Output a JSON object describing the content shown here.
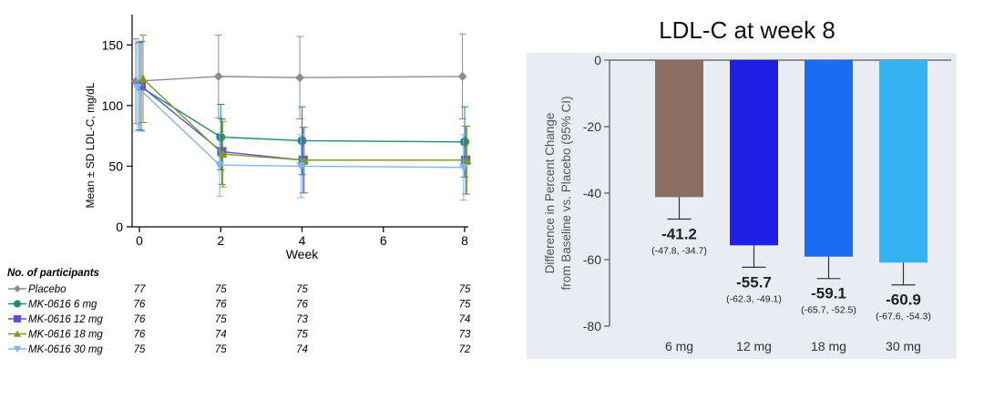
{
  "chart_data": [
    {
      "type": "line",
      "xlabel": "Week",
      "ylabel": "Mean ± SD LDL-C, mg/dL",
      "xlim": [
        0,
        8
      ],
      "ylim": [
        0,
        150
      ],
      "x_ticks": [
        "0",
        "2",
        "4",
        "6",
        "8"
      ],
      "y_ticks": [
        "0",
        "50",
        "100",
        "150"
      ],
      "x": [
        0,
        2,
        4,
        8
      ],
      "series": [
        {
          "name": "Placebo",
          "color": "#8c8c8c",
          "marker": "diamond",
          "values": [
            120,
            124,
            123,
            124
          ],
          "sd": [
            35,
            34,
            34,
            35
          ]
        },
        {
          "name": "MK-0616 6 mg",
          "color": "#1a8c7a",
          "marker": "circle",
          "values": [
            116,
            74,
            71,
            70
          ],
          "sd": [
            36,
            27,
            28,
            29
          ]
        },
        {
          "name": "MK-0616 12 mg",
          "color": "#5b4ee0",
          "marker": "square",
          "values": [
            116,
            62,
            55,
            55
          ],
          "sd": [
            37,
            27,
            27,
            28
          ]
        },
        {
          "name": "MK-0616 18 mg",
          "color": "#7a9a1e",
          "marker": "triangle-up",
          "values": [
            122,
            60,
            55,
            55
          ],
          "sd": [
            36,
            27,
            27,
            28
          ]
        },
        {
          "name": "MK-0616 30 mg",
          "color": "#7ab8ea",
          "marker": "triangle-down",
          "values": [
            115,
            51,
            50,
            49
          ],
          "sd": [
            36,
            26,
            26,
            27
          ]
        }
      ],
      "participants": {
        "title": "No. of participants",
        "weeks": [
          0,
          2,
          4,
          8
        ],
        "rows": [
          {
            "label": "Placebo",
            "counts": [
              "77",
              "75",
              "75",
              "75"
            ]
          },
          {
            "label": "MK-0616 6 mg",
            "counts": [
              "76",
              "76",
              "76",
              "75"
            ]
          },
          {
            "label": "MK-0616 12 mg",
            "counts": [
              "76",
              "75",
              "73",
              "74"
            ]
          },
          {
            "label": "MK-0616 18 mg",
            "counts": [
              "76",
              "74",
              "75",
              "73"
            ]
          },
          {
            "label": "MK-0616 30 mg",
            "counts": [
              "75",
              "75",
              "74",
              "72"
            ]
          }
        ]
      }
    },
    {
      "type": "bar",
      "title": "LDL-C at week 8",
      "ylabel": "Difference in Percent Change from Baseline vs. Placebo (95% CI)",
      "ylim": [
        -80,
        0
      ],
      "y_ticks": [
        "0",
        "-20",
        "-40",
        "-60",
        "-80"
      ],
      "categories": [
        "6 mg",
        "12 mg",
        "18 mg",
        "30 mg"
      ],
      "values": [
        -41.2,
        -55.7,
        -59.1,
        -60.9
      ],
      "value_labels": [
        "-41.2",
        "-55.7",
        "-59.1",
        "-60.9"
      ],
      "ci": [
        [
          -47.8,
          -34.7
        ],
        [
          -62.3,
          -49.1
        ],
        [
          -65.7,
          -52.5
        ],
        [
          -67.6,
          -54.3
        ]
      ],
      "ci_labels": [
        "(-47.8, -34.7)",
        "(-62.3, -49.1)",
        "(-65.7, -52.5)",
        "(-67.6, -54.3)"
      ],
      "colors": [
        "#8b6e61",
        "#1f1fe6",
        "#1a6cf2",
        "#33b2f2"
      ]
    }
  ]
}
